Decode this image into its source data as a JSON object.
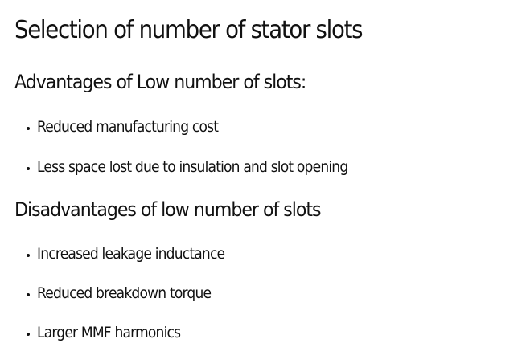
{
  "slide": {
    "title": "Selection of number of stator slots",
    "advantages": {
      "heading": "Advantages of Low number of slots:",
      "items": [
        "Reduced manufacturing cost",
        "Less space lost due to insulation and slot opening"
      ]
    },
    "disadvantages": {
      "heading": "Disadvantages of low number of slots",
      "items": [
        "Increased leakage inductance",
        "Reduced breakdown torque",
        "Larger MMF harmonics"
      ]
    }
  }
}
